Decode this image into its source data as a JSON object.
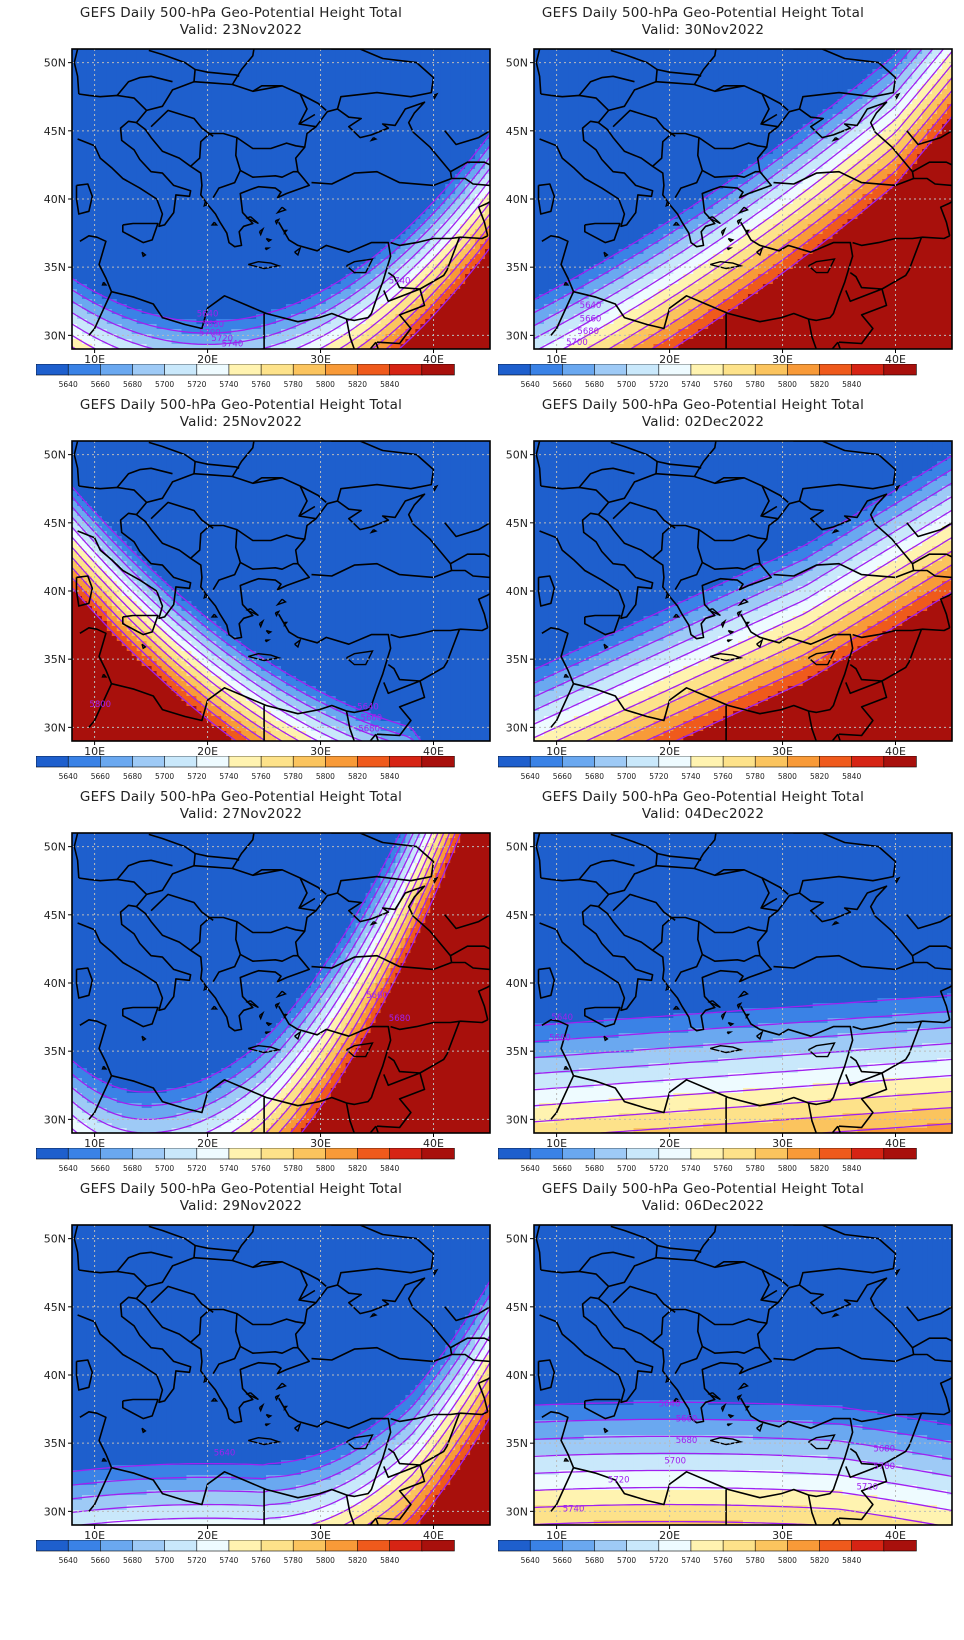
{
  "map_data": {
    "type": "contour-map",
    "variable": "GEFS Daily 500-hPa Geo-Potential Height Total",
    "units_hint": "gpm",
    "lat_range": [
      29,
      51
    ],
    "lon_range": [
      8,
      45
    ],
    "lat_ticks": [
      "30N",
      "35N",
      "40N",
      "45N",
      "50N"
    ],
    "lon_ticks": [
      "10E",
      "20E",
      "30E",
      "40E"
    ],
    "levels": [
      5640,
      5660,
      5680,
      5700,
      5720,
      5740,
      5760,
      5780,
      5800,
      5820,
      5840
    ],
    "colors": [
      "#1e5fcd",
      "#3a82e6",
      "#6aa8f0",
      "#9ecaf6",
      "#c9e8fb",
      "#eefbff",
      "#fff3b0",
      "#fde28a",
      "#fbc45e",
      "#f89a38",
      "#ef5a1c",
      "#d62414",
      "#a8100c"
    ],
    "contour_color": "#a020f0"
  },
  "panels": [
    {
      "title": "GEFS Daily 500-hPa Geo-Potential Height Total",
      "valid": "Valid: 23Nov2022",
      "contour_labels": [
        {
          "text": "5640",
          "lon": 20,
          "lat": 31.4
        },
        {
          "text": "5680",
          "lon": 20.5,
          "lat": 30.6
        },
        {
          "text": "5700",
          "lon": 20.2,
          "lat": 30.0
        },
        {
          "text": "5720",
          "lon": 21.3,
          "lat": 29.6
        },
        {
          "text": "5740",
          "lon": 22.2,
          "lat": 29.2
        },
        {
          "text": "5740",
          "lon": 37,
          "lat": 33.8
        }
      ]
    },
    {
      "title": "GEFS Daily 500-hPa Geo-Potential Height Total",
      "valid": "Valid: 30Nov2022",
      "contour_labels": [
        {
          "text": "5640",
          "lon": 13,
          "lat": 32.0
        },
        {
          "text": "5660",
          "lon": 13,
          "lat": 31.0
        },
        {
          "text": "5680",
          "lon": 12.8,
          "lat": 30.1
        },
        {
          "text": "5700",
          "lon": 11.8,
          "lat": 29.3
        }
      ]
    },
    {
      "title": "GEFS Daily 500-hPa Geo-Potential Height Total",
      "valid": "Valid: 25Nov2022",
      "contour_labels": [
        {
          "text": "5800",
          "lon": 10.5,
          "lat": 31.5
        },
        {
          "text": "5640",
          "lon": 34.2,
          "lat": 31.3
        },
        {
          "text": "5660",
          "lon": 34.5,
          "lat": 30.5
        },
        {
          "text": "5680",
          "lon": 34.3,
          "lat": 29.7
        }
      ]
    },
    {
      "title": "GEFS Daily 500-hPa Geo-Potential Height Total",
      "valid": "Valid: 02Dec2022",
      "contour_labels": []
    },
    {
      "title": "GEFS Daily 500-hPa Geo-Potential Height Total",
      "valid": "Valid: 27Nov2022",
      "contour_labels": [
        {
          "text": "5660",
          "lon": 35,
          "lat": 38.9
        },
        {
          "text": "5680",
          "lon": 37,
          "lat": 37.2
        }
      ]
    },
    {
      "title": "GEFS Daily 500-hPa Geo-Potential Height Total",
      "valid": "Valid: 04Dec2022",
      "contour_labels": [
        {
          "text": "5640",
          "lon": 10.5,
          "lat": 37.3
        },
        {
          "text": "5660",
          "lon": 10.3,
          "lat": 35.8
        }
      ]
    },
    {
      "title": "GEFS Daily 500-hPa Geo-Potential Height Total",
      "valid": "Valid: 29Nov2022",
      "contour_labels": [
        {
          "text": "5640",
          "lon": 21.5,
          "lat": 34.1
        }
      ]
    },
    {
      "title": "GEFS Daily 500-hPa Geo-Potential Height Total",
      "valid": "Valid: 06Dec2022",
      "contour_labels": [
        {
          "text": "5640",
          "lon": 20,
          "lat": 37.7
        },
        {
          "text": "5660",
          "lon": 21.5,
          "lat": 36.6
        },
        {
          "text": "5680",
          "lon": 21.5,
          "lat": 35.0
        },
        {
          "text": "5700",
          "lon": 20.5,
          "lat": 33.5
        },
        {
          "text": "5720",
          "lon": 15.5,
          "lat": 32.1
        },
        {
          "text": "5740",
          "lon": 11.5,
          "lat": 30.0
        },
        {
          "text": "5680",
          "lon": 39,
          "lat": 34.4
        },
        {
          "text": "5700",
          "lon": 39,
          "lat": 33.1
        },
        {
          "text": "5720",
          "lon": 37.5,
          "lat": 31.6
        }
      ]
    }
  ]
}
